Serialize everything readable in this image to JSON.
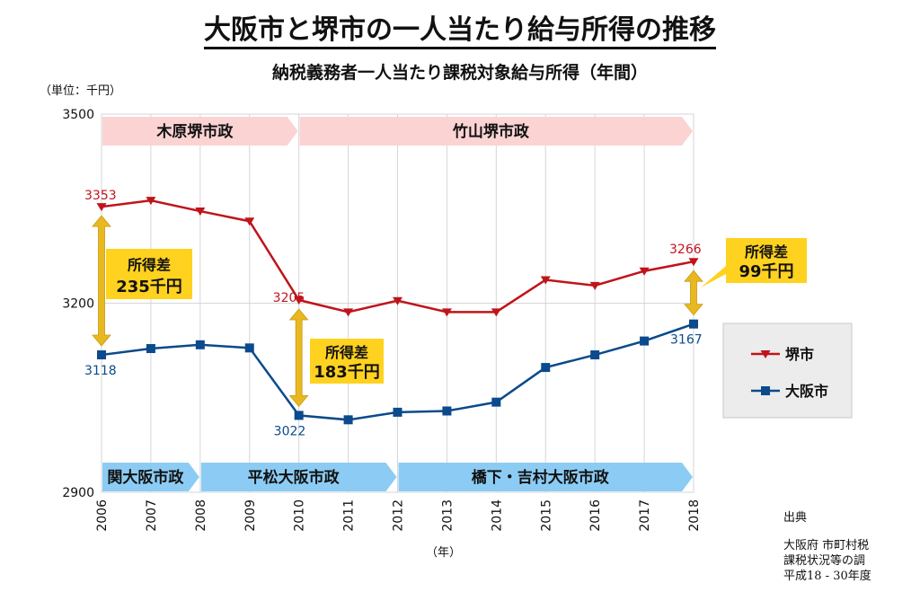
{
  "header": {
    "title": "大阪市と堺市の一人当たり給与所得の推移",
    "subtitle": "納税義務者一人当たり課税対象給与所得（年間）",
    "unit_label": "（単位：千円）",
    "x_unit_label": "（年）"
  },
  "source": {
    "heading": "出典",
    "line1": "大阪府 市町村税",
    "line2": "課税状況等の調",
    "line3": "平成18 - 30年度"
  },
  "colors": {
    "sakai": "#c0141b",
    "osaka": "#0b4a8c",
    "sakai_band": "#fbd3d3",
    "osaka_band": "#8cccf4",
    "callout": "#ffd21f",
    "arrow": "#e8b820",
    "legend_bg": "#ececec",
    "grid": "#d6d6d6"
  },
  "chart_data": {
    "type": "line",
    "x": [
      "2006",
      "2007",
      "2008",
      "2009",
      "2010",
      "2011",
      "2012",
      "2013",
      "2014",
      "2015",
      "2016",
      "2017",
      "2018"
    ],
    "ylim": [
      2900,
      3500
    ],
    "yticks": [
      "2900",
      "3200",
      "3500"
    ],
    "grid": true,
    "legend_position": "right",
    "series": [
      {
        "name": "堺市",
        "marker": "triangle-down",
        "color": "#c0141b",
        "values": [
          3353,
          3363,
          3346,
          3330,
          3205,
          3186,
          3204,
          3186,
          3186,
          3237,
          3228,
          3251,
          3266
        ]
      },
      {
        "name": "大阪市",
        "marker": "square",
        "color": "#0b4a8c",
        "values": [
          3118,
          3128,
          3134,
          3129,
          3022,
          3015,
          3027,
          3029,
          3043,
          3098,
          3118,
          3140,
          3167
        ]
      }
    ],
    "data_labels": [
      {
        "series": 0,
        "index": 0,
        "text": "3353"
      },
      {
        "series": 0,
        "index": 4,
        "text": "3205"
      },
      {
        "series": 0,
        "index": 12,
        "text": "3266"
      },
      {
        "series": 1,
        "index": 0,
        "text": "3118"
      },
      {
        "series": 1,
        "index": 4,
        "text": "3022"
      },
      {
        "series": 1,
        "index": 12,
        "text": "3167"
      }
    ],
    "sakai_admin_bands": [
      {
        "label": "木原堺市政",
        "from": "2006",
        "to": "2010"
      },
      {
        "label": "竹山堺市政",
        "from": "2010",
        "to": "2018"
      }
    ],
    "osaka_admin_bands": [
      {
        "label": "関大阪市政",
        "from": "2006",
        "to": "2008"
      },
      {
        "label": "平松大阪市政",
        "from": "2008",
        "to": "2012"
      },
      {
        "label": "橋下・吉村大阪市政",
        "from": "2012",
        "to": "2018"
      }
    ],
    "annotations": [
      {
        "year": "2006",
        "line1": "所得差",
        "line2": "235千円"
      },
      {
        "year": "2010",
        "line1": "所得差",
        "line2": "183千円"
      },
      {
        "year": "2018",
        "line1": "所得差",
        "line2": "99千円"
      }
    ]
  }
}
